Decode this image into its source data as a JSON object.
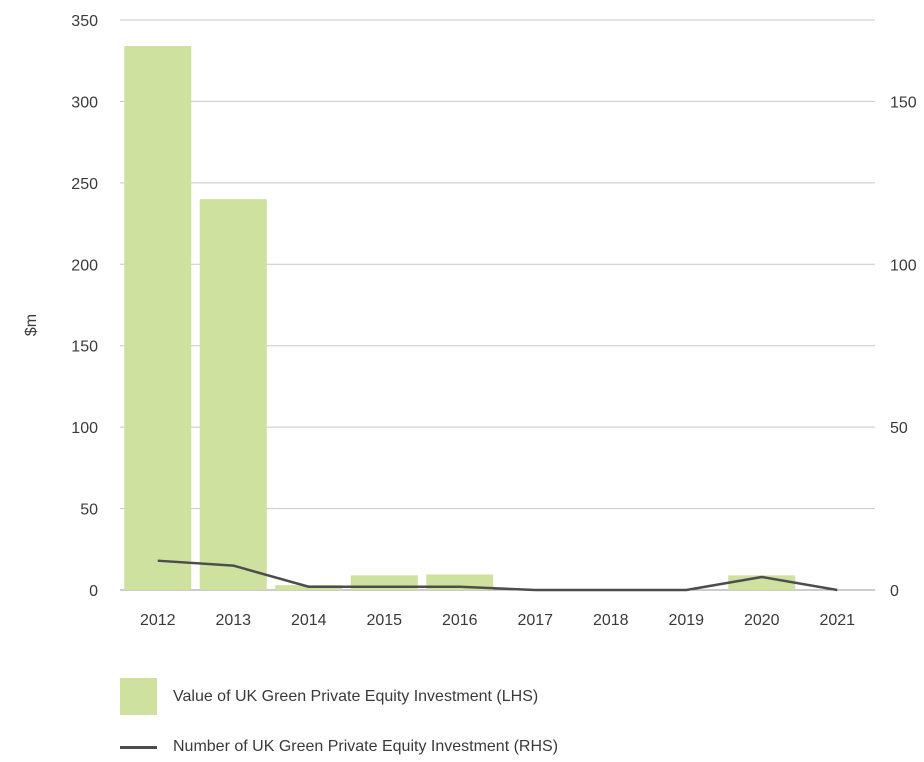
{
  "chart_data": {
    "type": "bar",
    "categories": [
      "2012",
      "2013",
      "2014",
      "2015",
      "2016",
      "2017",
      "2018",
      "2019",
      "2020",
      "2021"
    ],
    "ylabel": "$m",
    "ylim": [
      0,
      350
    ],
    "yticks": [
      0,
      50,
      100,
      150,
      200,
      250,
      300,
      350
    ],
    "y2lim": [
      0,
      175
    ],
    "y2ticks": [
      0,
      50,
      100,
      150
    ],
    "grid": true,
    "legend_placement": "bottom-left",
    "series": [
      {
        "name": "Value of UK Green Private Equity Investment (LHS)",
        "type": "bar",
        "axis": "left",
        "color": "#cfe19e",
        "values": [
          334,
          240,
          3,
          9,
          9.5,
          0,
          0,
          0,
          9,
          0
        ]
      },
      {
        "name": "Number of UK Green Private Equity Investment (RHS)",
        "type": "line",
        "axis": "right",
        "color": "#4d4d4d",
        "values": [
          9,
          7.5,
          1,
          1,
          1,
          0,
          0,
          0,
          4,
          0
        ]
      }
    ]
  }
}
